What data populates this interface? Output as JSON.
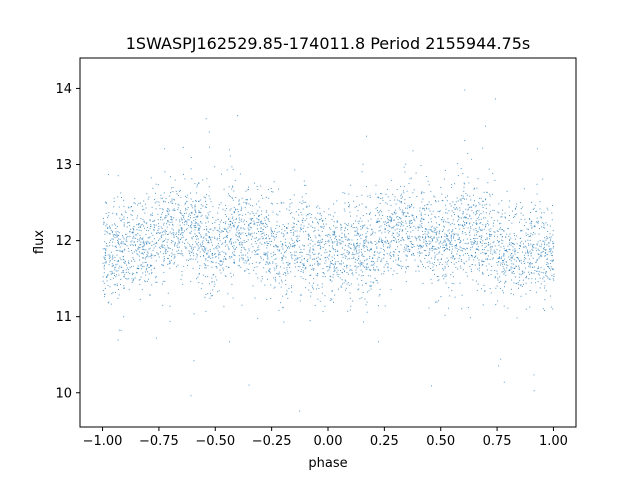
{
  "chart_data": {
    "type": "scatter",
    "title": "1SWASPJ162529.85-174011.8 Period 2155944.75s",
    "xlabel": "phase",
    "ylabel": "flux",
    "xlim": [
      -1.1,
      1.1
    ],
    "ylim": [
      9.55,
      14.4
    ],
    "xticks": [
      -1.0,
      -0.75,
      -0.5,
      -0.25,
      0.0,
      0.25,
      0.5,
      0.75,
      1.0
    ],
    "xtick_labels": [
      "−1.00",
      "−0.75",
      "−0.50",
      "−0.25",
      "0.00",
      "0.25",
      "0.50",
      "0.75",
      "1.00"
    ],
    "yticks": [
      10,
      11,
      12,
      13,
      14
    ],
    "ytick_labels": [
      "10",
      "11",
      "12",
      "13",
      "14"
    ],
    "grid": false,
    "point_color": "#1f77b4",
    "series": [
      {
        "x_range": [
          -1.0,
          1.0
        ],
        "median_flux": 12.0,
        "phase_bins": [
          -1.0,
          -0.9,
          -0.8,
          -0.7,
          -0.6,
          -0.5,
          -0.4,
          -0.3,
          -0.2,
          -0.1,
          0.0,
          0.1,
          0.2,
          0.3,
          0.4,
          0.5,
          0.6,
          0.7,
          0.8,
          0.9,
          1.0
        ],
        "bin_flux": [
          11.85,
          11.95,
          11.95,
          12.15,
          12.2,
          11.9,
          12.2,
          12.05,
          11.85,
          11.9,
          11.85,
          11.95,
          11.95,
          12.15,
          12.2,
          11.9,
          12.2,
          12.05,
          11.85,
          11.9,
          11.85
        ],
        "flux_min": 9.75,
        "flux_max": 14.1
      }
    ]
  }
}
